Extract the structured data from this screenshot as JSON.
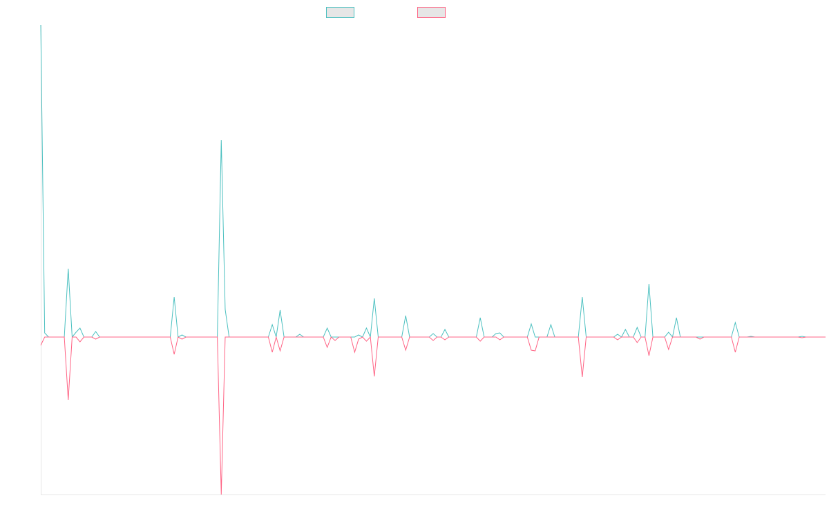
{
  "chart_data": {
    "type": "line",
    "ylim": [
      -228,
      452
    ],
    "series": [
      {
        "color": "#4bc0c0",
        "values": [
          452,
          6,
          0,
          0,
          0,
          0,
          0,
          99,
          0,
          7,
          13,
          0,
          0,
          0,
          8,
          0,
          0,
          0,
          0,
          0,
          0,
          0,
          0,
          0,
          0,
          0,
          0,
          0,
          0,
          0,
          0,
          0,
          0,
          0,
          58,
          0,
          3,
          0,
          0,
          0,
          0,
          0,
          0,
          0,
          0,
          0,
          285,
          40,
          0,
          0,
          0,
          0,
          0,
          0,
          0,
          0,
          0,
          0,
          0,
          18,
          0,
          39,
          0,
          0,
          0,
          0,
          4,
          0,
          0,
          0,
          0,
          0,
          0,
          13,
          0,
          0,
          0,
          0,
          0,
          0,
          0,
          3,
          0,
          13,
          0,
          56,
          0,
          0,
          0,
          0,
          0,
          0,
          0,
          31,
          0,
          0,
          0,
          0,
          0,
          0,
          5,
          0,
          0,
          11,
          0,
          0,
          0,
          0,
          0,
          0,
          0,
          0,
          28,
          0,
          0,
          0,
          5,
          6,
          0,
          0,
          0,
          0,
          0,
          0,
          0,
          19,
          0,
          0,
          0,
          0,
          18,
          0,
          0,
          0,
          0,
          0,
          0,
          0,
          58,
          0,
          0,
          0,
          0,
          0,
          0,
          0,
          0,
          4,
          0,
          11,
          0,
          0,
          14,
          0,
          0,
          77,
          0,
          0,
          0,
          0,
          7,
          0,
          28,
          0,
          0,
          0,
          0,
          0,
          0,
          0,
          0,
          0,
          0,
          0,
          0,
          0,
          0,
          21,
          0,
          0,
          0,
          1,
          0,
          0,
          0,
          0,
          0,
          0,
          0,
          0,
          0,
          0,
          0,
          0,
          1,
          0,
          0,
          0,
          0,
          0,
          0
        ]
      },
      {
        "color": "#ff6384",
        "values": [
          -12,
          0,
          0,
          0,
          0,
          0,
          0,
          -91,
          0,
          0,
          -7,
          0,
          0,
          0,
          -3,
          0,
          0,
          0,
          0,
          0,
          0,
          0,
          0,
          0,
          0,
          0,
          0,
          0,
          0,
          0,
          0,
          0,
          0,
          0,
          -25,
          0,
          -3,
          0,
          0,
          0,
          0,
          0,
          0,
          0,
          0,
          0,
          -228,
          0,
          0,
          0,
          0,
          0,
          0,
          0,
          0,
          0,
          0,
          0,
          0,
          -22,
          0,
          -20,
          0,
          0,
          0,
          0,
          0,
          0,
          0,
          0,
          0,
          0,
          0,
          -15,
          0,
          -5,
          0,
          0,
          0,
          0,
          -22,
          -3,
          0,
          -6,
          0,
          -57,
          0,
          0,
          0,
          0,
          0,
          0,
          0,
          -19,
          0,
          0,
          0,
          0,
          0,
          0,
          -5,
          0,
          0,
          -4,
          0,
          0,
          0,
          0,
          0,
          0,
          0,
          0,
          -6,
          0,
          0,
          0,
          0,
          -4,
          0,
          0,
          0,
          0,
          0,
          0,
          0,
          -19,
          -20,
          0,
          0,
          0,
          0,
          0,
          0,
          0,
          0,
          0,
          0,
          0,
          -58,
          0,
          0,
          0,
          0,
          0,
          0,
          0,
          0,
          -4,
          0,
          0,
          0,
          0,
          -8,
          0,
          0,
          -27,
          0,
          0,
          0,
          0,
          -18,
          0,
          0,
          0,
          0,
          0,
          0,
          0,
          -3,
          0,
          0,
          0,
          0,
          0,
          0,
          0,
          0,
          -22,
          0,
          0,
          0,
          0,
          0,
          0,
          0,
          0,
          0,
          0,
          0,
          0,
          0,
          0,
          0,
          0,
          -1,
          0,
          0,
          0,
          0,
          0,
          0
        ]
      }
    ]
  }
}
